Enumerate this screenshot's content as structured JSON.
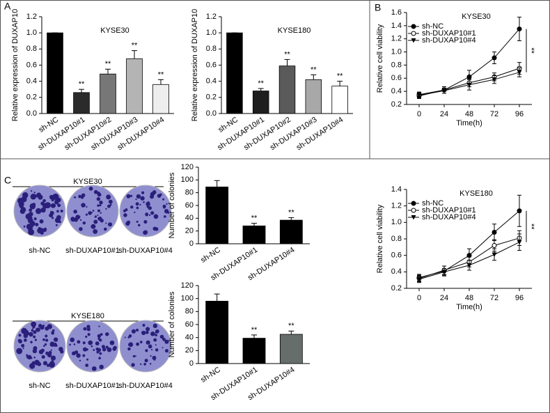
{
  "panel_labels": [
    "A",
    "B",
    "C"
  ],
  "colony_assays": [
    {
      "title": "KYSE30",
      "labels": [
        "sh-NC",
        "sh-DUXAP10#1",
        "sh-DUXAP10#4"
      ]
    },
    {
      "title": "KYSE180",
      "labels": [
        "sh-NC",
        "sh-DUXAP10#1",
        "sh-DUXAP10#4"
      ]
    }
  ],
  "chart_data": [
    {
      "type": "bar",
      "title": "KYSE30",
      "ylabel": "Relative expression of DUXAP10",
      "categories": [
        "sh-NC",
        "sh-DUXAP10#1",
        "sh-DUXAP10#2",
        "sh-DUXAP10#3",
        "sh-DUXAP10#4"
      ],
      "values": [
        1.0,
        0.26,
        0.49,
        0.68,
        0.36
      ],
      "errors": [
        0,
        0.04,
        0.06,
        0.1,
        0.06
      ],
      "annotations": [
        null,
        "**",
        "**",
        "**",
        "**"
      ],
      "colors": [
        "#000000",
        "#2b2b2b",
        "#777777",
        "#b4b4b4",
        "#eeeeee"
      ],
      "ylim": [
        0,
        1.2
      ],
      "yticks": [
        {
          "value": 0,
          "label": "0.0"
        },
        0.2,
        0.4,
        0.6,
        0.8,
        {
          "value": 1,
          "label": "1.0"
        },
        1.2
      ]
    },
    {
      "type": "bar",
      "title": "KYSE180",
      "ylabel": "Relative expression of DUXAP10",
      "categories": [
        "sh-NC",
        "sh-DUXAP10#1",
        "sh-DUXAP10#2",
        "sh-DUXAP10#3",
        "sh-DUXAP10#4"
      ],
      "values": [
        1.0,
        0.28,
        0.59,
        0.42,
        0.34
      ],
      "errors": [
        0,
        0.03,
        0.08,
        0.06,
        0.06
      ],
      "annotations": [
        null,
        "**",
        "**",
        "**",
        "**"
      ],
      "colors": [
        "#000000",
        "#1e1e1e",
        "#5a5a5a",
        "#a8a8a8",
        "#ffffff"
      ],
      "ylim": [
        0,
        1.2
      ],
      "yticks": [
        {
          "value": 0,
          "label": "0.0"
        },
        0.2,
        0.4,
        0.6,
        0.8,
        {
          "value": 1,
          "label": "1.0"
        },
        1.2
      ]
    },
    {
      "type": "line",
      "title": "KYSE30",
      "xlabel": "Time(h)",
      "ylabel": "Relative cell viability",
      "x": [
        0,
        24,
        48,
        72,
        96
      ],
      "xlim": [
        -12,
        108
      ],
      "xticks": [
        0,
        24,
        48,
        72,
        96
      ],
      "ylim": [
        0.2,
        1.6
      ],
      "yticks": [
        0.2,
        0.4,
        0.6,
        0.8,
        {
          "value": 1,
          "label": "1.0"
        },
        1.2,
        1.4,
        1.6
      ],
      "legend": "upper left",
      "annotation": "**",
      "series": [
        {
          "name": "sh-NC",
          "color": "#000000",
          "marker": "circle",
          "values": [
            0.33,
            0.42,
            0.62,
            0.91,
            1.35
          ],
          "errors": [
            0.04,
            0.05,
            0.1,
            0.09,
            0.18
          ]
        },
        {
          "name": "sh-DUXAP10#1",
          "color": "#000000",
          "marker": "open-circle",
          "values": [
            0.35,
            0.42,
            0.53,
            0.62,
            0.75
          ],
          "errors": [
            0.04,
            0.05,
            0.06,
            0.06,
            0.09
          ]
        },
        {
          "name": "sh-DUXAP10#4",
          "color": "#000000",
          "marker": "triangle-down",
          "values": [
            0.34,
            0.41,
            0.5,
            0.58,
            0.69
          ],
          "errors": [
            0.04,
            0.04,
            0.08,
            0.06,
            0.07
          ]
        }
      ]
    },
    {
      "type": "bar",
      "ylabel": "Number of colonies",
      "categories": [
        "sh-NC",
        "sh-DUXAP10#1",
        "sh-DUXAP10#4"
      ],
      "values": [
        89,
        28,
        37
      ],
      "errors": [
        10,
        4,
        4
      ],
      "annotations": [
        null,
        "**",
        "**"
      ],
      "colors": [
        "#000000",
        "#000000",
        "#000000"
      ],
      "ylim": [
        0,
        120
      ],
      "yticks": [
        0,
        20,
        40,
        60,
        80,
        100,
        120
      ]
    },
    {
      "type": "bar",
      "ylabel": "Number of colonies",
      "categories": [
        "sh-NC",
        "sh-DUXAP10#1",
        "sh-DUXAP10#4"
      ],
      "values": [
        96,
        39,
        45
      ],
      "errors": [
        11,
        5,
        5
      ],
      "annotations": [
        null,
        "**",
        "**"
      ],
      "colors": [
        "#000000",
        "#000000",
        "#666d6a"
      ],
      "ylim": [
        0,
        120
      ],
      "yticks": [
        0,
        20,
        40,
        60,
        80,
        100,
        120
      ]
    },
    {
      "type": "line",
      "title": "KYSE180",
      "xlabel": "Time(h)",
      "ylabel": "Relative cell viability",
      "x": [
        0,
        24,
        48,
        72,
        96
      ],
      "xlim": [
        -12,
        108
      ],
      "xticks": [
        0,
        24,
        48,
        72,
        96
      ],
      "ylim": [
        0.2,
        1.4
      ],
      "yticks": [
        0.2,
        0.4,
        0.6,
        0.8,
        {
          "value": 1,
          "label": "1.0"
        },
        1.2,
        1.4
      ],
      "legend": "upper left",
      "annotation": "**",
      "series": [
        {
          "name": "sh-NC",
          "color": "#000000",
          "marker": "circle",
          "values": [
            0.33,
            0.41,
            0.6,
            0.88,
            1.14
          ],
          "errors": [
            0.04,
            0.06,
            0.08,
            0.1,
            0.19
          ]
        },
        {
          "name": "sh-DUXAP10#1",
          "color": "#000000",
          "marker": "open-circle",
          "values": [
            0.32,
            0.42,
            0.52,
            0.72,
            0.81
          ],
          "errors": [
            0.04,
            0.05,
            0.06,
            0.07,
            0.09
          ]
        },
        {
          "name": "sh-DUXAP10#4",
          "color": "#000000",
          "marker": "triangle-down",
          "values": [
            0.31,
            0.4,
            0.48,
            0.61,
            0.76
          ],
          "errors": [
            0.04,
            0.04,
            0.06,
            0.07,
            0.1
          ]
        }
      ]
    }
  ]
}
